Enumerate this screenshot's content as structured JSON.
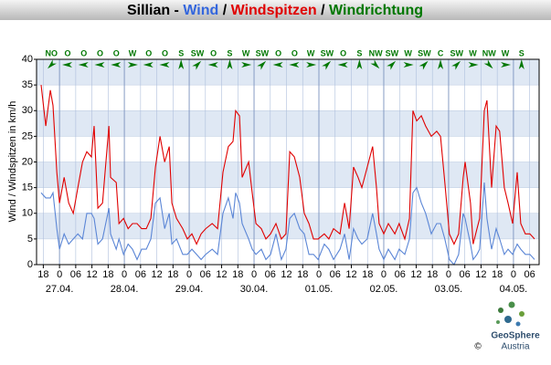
{
  "chart_data": {
    "type": "line",
    "title_parts": [
      {
        "text": "Sillian - ",
        "color": "#000000"
      },
      {
        "text": "Wind",
        "color": "#3366dd"
      },
      {
        "text": " / ",
        "color": "#000000"
      },
      {
        "text": "Windspitzen",
        "color": "#e00000"
      },
      {
        "text": " / ",
        "color": "#000000"
      },
      {
        "text": "Windrichtung",
        "color": "#007700"
      }
    ],
    "y_label": "Wind / Windspitzen in km/h",
    "xlim": [
      -8.5,
      177.5
    ],
    "ylim": [
      0,
      40
    ],
    "yticks": [
      0,
      5,
      10,
      15,
      20,
      25,
      30,
      35,
      40
    ],
    "xticks": [
      {
        "value": -6,
        "label": "18"
      },
      {
        "value": 0,
        "label": "0"
      },
      {
        "value": 6,
        "label": "06"
      },
      {
        "value": 12,
        "label": "12"
      },
      {
        "value": 18,
        "label": "18"
      },
      {
        "value": 24,
        "label": "0"
      },
      {
        "value": 30,
        "label": "06"
      },
      {
        "value": 36,
        "label": "12"
      },
      {
        "value": 42,
        "label": "18"
      },
      {
        "value": 48,
        "label": "0"
      },
      {
        "value": 54,
        "label": "06"
      },
      {
        "value": 60,
        "label": "12"
      },
      {
        "value": 66,
        "label": "18"
      },
      {
        "value": 72,
        "label": "0"
      },
      {
        "value": 78,
        "label": "06"
      },
      {
        "value": 84,
        "label": "12"
      },
      {
        "value": 90,
        "label": "18"
      },
      {
        "value": 96,
        "label": "0"
      },
      {
        "value": 102,
        "label": "06"
      },
      {
        "value": 108,
        "label": "12"
      },
      {
        "value": 114,
        "label": "18"
      },
      {
        "value": 120,
        "label": "0"
      },
      {
        "value": 126,
        "label": "06"
      },
      {
        "value": 132,
        "label": "12"
      },
      {
        "value": 138,
        "label": "18"
      },
      {
        "value": 144,
        "label": "0"
      },
      {
        "value": 150,
        "label": "06"
      },
      {
        "value": 156,
        "label": "12"
      },
      {
        "value": 162,
        "label": "18"
      },
      {
        "value": 168,
        "label": "0"
      },
      {
        "value": 174,
        "label": "06"
      }
    ],
    "date_ticks": [
      {
        "value": 0,
        "label": "27.04."
      },
      {
        "value": 24,
        "label": "28.04."
      },
      {
        "value": 48,
        "label": "29.04."
      },
      {
        "value": 72,
        "label": "30.04."
      },
      {
        "value": 96,
        "label": "01.05."
      },
      {
        "value": 120,
        "label": "02.05."
      },
      {
        "value": 144,
        "label": "03.05."
      },
      {
        "value": 168,
        "label": "04.05."
      }
    ],
    "grid": true,
    "band_color": "#dfe8f4",
    "wind_directions": {
      "color": "#007700",
      "x": [
        -3,
        3,
        9,
        15,
        21,
        27,
        33,
        39,
        45,
        51,
        57,
        63,
        69,
        75,
        81,
        87,
        93,
        99,
        105,
        111,
        117,
        123,
        129,
        135,
        141,
        147,
        153,
        159,
        165,
        171
      ],
      "labels": [
        "NO",
        "O",
        "O",
        "O",
        "O",
        "W",
        "O",
        "O",
        "S",
        "SW",
        "O",
        "S",
        "W",
        "SW",
        "O",
        "O",
        "W",
        "SW",
        "O",
        "S",
        "NW",
        "SW",
        "W",
        "SW",
        "C",
        "SW",
        "W",
        "NW",
        "W",
        "S"
      ]
    },
    "x": [
      -6.8,
      -5.1,
      -3.4,
      -2.4,
      -1.0,
      0,
      1.7,
      3.4,
      5.1,
      6.8,
      8.5,
      10.1,
      11.8,
      12.8,
      14.2,
      15.9,
      18.3,
      18.9,
      21.0,
      22.0,
      23.7,
      25.4,
      27.0,
      28.7,
      30.4,
      32.1,
      33.8,
      35.5,
      37.2,
      38.9,
      40.6,
      41.6,
      43.3,
      45.6,
      47.3,
      49.0,
      50.7,
      52.4,
      54.1,
      56.5,
      58.5,
      60.5,
      62.5,
      64.2,
      65.2,
      66.6,
      67.6,
      70.0,
      71.3,
      72.7,
      74.7,
      76.4,
      78.1,
      80.1,
      82.1,
      83.8,
      85.2,
      86.9,
      88.9,
      90.6,
      92.3,
      94.0,
      95.7,
      98.0,
      99.7,
      101.4,
      103.8,
      105.5,
      107.2,
      108.8,
      110.5,
      111.9,
      113.9,
      115.9,
      117.3,
      118.3,
      120.0,
      121.7,
      124.1,
      125.7,
      127.8,
      129.5,
      130.8,
      132.2,
      133.9,
      135.5,
      137.6,
      139.6,
      141.0,
      142.6,
      144.3,
      146.0,
      147.7,
      149.4,
      150.1,
      152.1,
      153.1,
      154.5,
      155.5,
      157.2,
      158.2,
      159.9,
      161.6,
      162.9,
      164.6,
      166.0,
      167.7,
      169.4,
      170.7,
      172.4,
      174.1,
      175.8
    ],
    "series": [
      {
        "name": "Wind",
        "color": "#5b86d6",
        "values": [
          14,
          13,
          13,
          14,
          7,
          3,
          6,
          4,
          5,
          6,
          5,
          10,
          10,
          9,
          4,
          5,
          11,
          6,
          3,
          5,
          2,
          4,
          3,
          1,
          3,
          3,
          5,
          12,
          13,
          7,
          10,
          4,
          5,
          2,
          2,
          3,
          2,
          1,
          2,
          3,
          2,
          10,
          13,
          9,
          14,
          12,
          8,
          5,
          3,
          2,
          3,
          1,
          2,
          6,
          1,
          3,
          9,
          10,
          7,
          6,
          2,
          2,
          1,
          4,
          3,
          1,
          3,
          6,
          1,
          7,
          5,
          4,
          5,
          10,
          6,
          3,
          1,
          3,
          1,
          3,
          2,
          5,
          14,
          15,
          12,
          10,
          6,
          8,
          8,
          5,
          1,
          0,
          2,
          10,
          9,
          4,
          1,
          2,
          3,
          16,
          9,
          3,
          7,
          5,
          2,
          3,
          2,
          4,
          3,
          2,
          2,
          1
        ]
      },
      {
        "name": "Windspitzen",
        "color": "#e00000",
        "values": [
          35,
          27,
          34,
          31,
          18,
          12,
          17,
          12,
          10,
          15,
          20,
          22,
          21,
          27,
          11,
          12,
          27,
          17,
          16,
          8,
          9,
          7,
          8,
          8,
          7,
          7,
          9,
          19,
          25,
          20,
          23,
          12,
          9,
          7,
          5,
          6,
          4,
          6,
          7,
          8,
          7,
          18,
          23,
          24,
          30,
          29,
          17,
          20,
          14,
          8,
          7,
          5,
          6,
          8,
          5,
          6,
          22,
          21,
          17,
          10,
          8,
          5,
          5,
          6,
          5,
          7,
          6,
          12,
          7,
          19,
          17,
          15,
          19,
          23,
          15,
          8,
          6,
          8,
          6,
          8,
          5,
          9,
          30,
          28,
          29,
          27,
          25,
          26,
          25,
          16,
          6,
          4,
          6,
          17,
          20,
          12,
          4,
          7,
          9,
          30,
          32,
          15,
          27,
          26,
          15,
          12,
          8,
          18,
          8,
          6,
          6,
          5
        ]
      }
    ],
    "branding": {
      "name": "GeoSphere",
      "country": "Austria",
      "copyright": "©"
    }
  }
}
